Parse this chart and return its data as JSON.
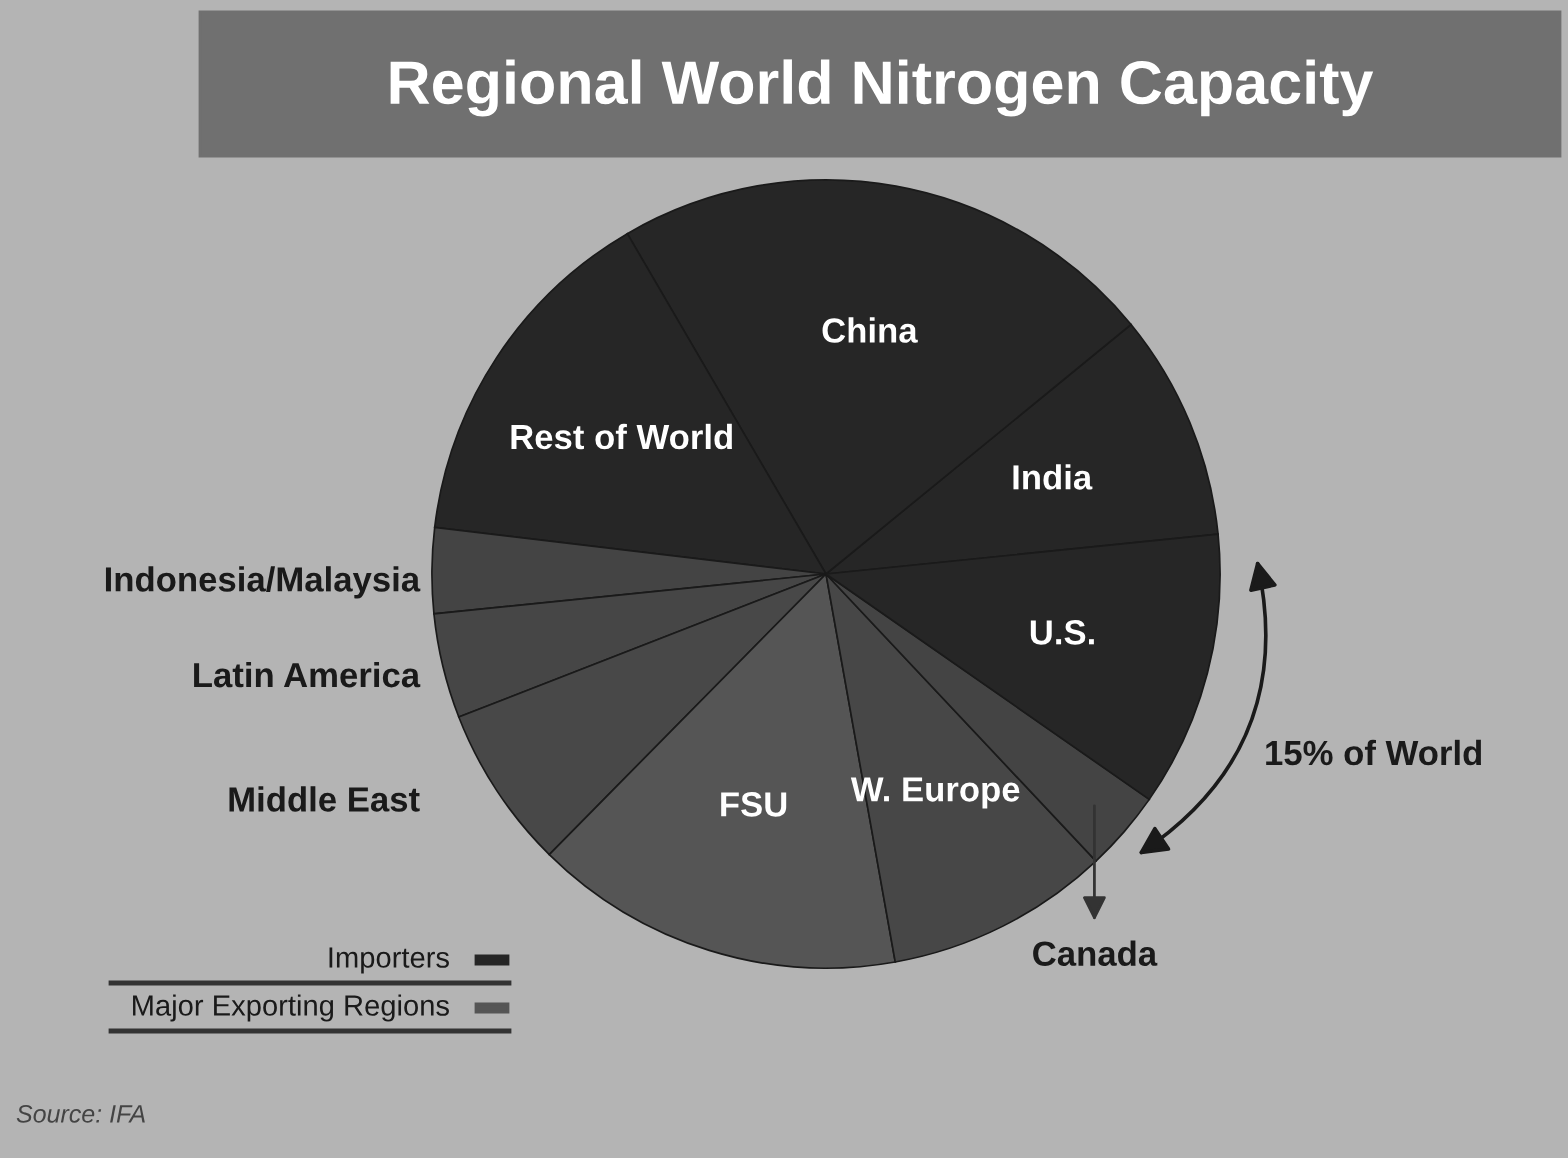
{
  "chart_data": {
    "type": "pie",
    "title": "Regional World Nitrogen Capacity",
    "categories": [
      "India",
      "China",
      "Rest of World",
      "Indonesia/Malaysia",
      "Latin America",
      "Middle East",
      "FSU",
      "W. Europe",
      "Canada",
      "U.S."
    ],
    "values": [
      9.3,
      22.5,
      14.7,
      3.5,
      4.3,
      6.7,
      15.2,
      9.2,
      3.3,
      11.3
    ],
    "colors": [
      "#262626",
      "#262626",
      "#262626",
      "#444444",
      "#464646",
      "#484848",
      "#555555",
      "#474747",
      "#444444",
      "#262626"
    ],
    "annotations": [
      "15% of World",
      "Importers",
      "Major Exporting Regions",
      "Source: IFA"
    ]
  }
}
